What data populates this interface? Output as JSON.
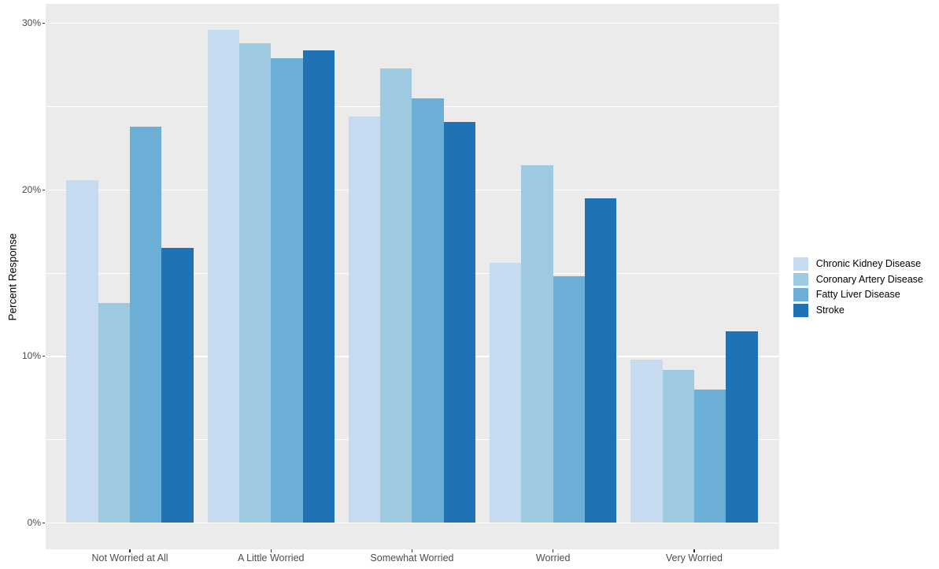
{
  "chart_data": {
    "type": "bar",
    "mode": "grouped",
    "title": "",
    "xlabel": "",
    "ylabel": "Percent Response",
    "categories": [
      "Not Worried at All",
      "A Little Worried",
      "Somewhat Worried",
      "Worried",
      "Very Worried"
    ],
    "series": [
      {
        "name": "Chronic Kidney Disease",
        "color": "#C6DBEF",
        "values": [
          20.6,
          29.6,
          24.4,
          15.6,
          9.8
        ]
      },
      {
        "name": "Coronary Artery Disease",
        "color": "#9ECAE1",
        "values": [
          13.2,
          28.8,
          27.3,
          21.5,
          9.2
        ]
      },
      {
        "name": "Fatty Liver Disease",
        "color": "#6BAED6",
        "values": [
          23.8,
          27.9,
          25.5,
          14.8,
          8.0
        ]
      },
      {
        "name": "Stroke",
        "color": "#2171B5",
        "values": [
          16.5,
          28.4,
          24.1,
          19.5,
          11.5
        ]
      }
    ],
    "y_axis": {
      "ticks": [
        {
          "value": 0,
          "label": "0%"
        },
        {
          "value": 10,
          "label": "10%"
        },
        {
          "value": 20,
          "label": "20%"
        },
        {
          "value": 30,
          "label": "30%"
        }
      ],
      "minor_ticks": [
        5,
        15,
        25
      ],
      "lim": [
        -1.5,
        31.2
      ]
    },
    "legend_position": "right",
    "grid": true,
    "colors": {
      "panel_bg": "#EBEBEB",
      "grid": "#FFFFFF",
      "tick_mark": "#333333",
      "tick_label": "#4D4D4D",
      "axis_title": "#000000",
      "page_bg": "#FFFFFF"
    }
  }
}
